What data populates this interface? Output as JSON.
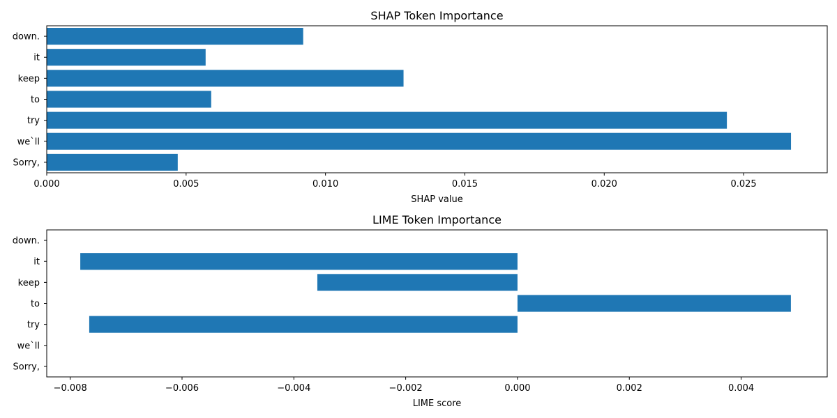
{
  "chart_data": [
    {
      "type": "bar",
      "orientation": "horizontal",
      "title": "SHAP Token Importance",
      "xlabel": "SHAP value",
      "ylabel": "",
      "categories": [
        "Sorry,",
        "we`ll",
        "try",
        "to",
        "keep",
        "it",
        "down."
      ],
      "values": [
        0.0047,
        0.0267,
        0.0244,
        0.0059,
        0.0128,
        0.0057,
        0.0092
      ],
      "xlim": [
        0.0,
        0.028
      ],
      "xticks": [
        0.0,
        0.005,
        0.01,
        0.015,
        0.02,
        0.025
      ],
      "xtick_labels": [
        "0.000",
        "0.005",
        "0.010",
        "0.015",
        "0.020",
        "0.025"
      ],
      "grid": false,
      "color": "#1f77b4"
    },
    {
      "type": "bar",
      "orientation": "horizontal",
      "title": "LIME Token Importance",
      "xlabel": "LIME score",
      "ylabel": "",
      "categories": [
        "Sorry,",
        "we`ll",
        "try",
        "to",
        "keep",
        "it",
        "down."
      ],
      "values": [
        0.0,
        0.0,
        -0.00766,
        0.00489,
        -0.00358,
        -0.00782,
        0.0
      ],
      "xlim": [
        -0.00842,
        0.00554
      ],
      "xticks": [
        -0.008,
        -0.006,
        -0.004,
        -0.002,
        0.0,
        0.002,
        0.004
      ],
      "xtick_labels": [
        "−0.008",
        "−0.006",
        "−0.004",
        "−0.002",
        "0.000",
        "0.002",
        "0.004"
      ],
      "grid": false,
      "color": "#1f77b4"
    }
  ]
}
